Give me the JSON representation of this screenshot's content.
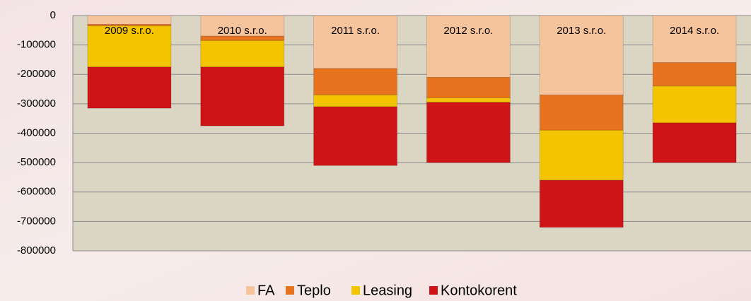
{
  "chart_data": {
    "type": "stacked-bar",
    "categories": [
      "2009  s.r.o.",
      "2010 s.r.o.",
      "2011 s.r.o.",
      "2012 s.r.o.",
      "2013 s.r.o.",
      "2014 s.r.o."
    ],
    "series": [
      {
        "name": "FA",
        "color": "#f6c49c",
        "values": [
          -30000,
          -70000,
          -180000,
          -210000,
          -270000,
          -160000
        ]
      },
      {
        "name": "Teplo",
        "color": "#e7731f",
        "values": [
          -5000,
          -15000,
          -90000,
          -70000,
          -120000,
          -80000
        ]
      },
      {
        "name": "Leasing",
        "color": "#f4c400",
        "values": [
          -140000,
          -90000,
          -40000,
          -15000,
          -170000,
          -125000
        ]
      },
      {
        "name": "Kontokorent",
        "color": "#cf1418",
        "values": [
          -140000,
          -200000,
          -200000,
          -205000,
          -160000,
          -135000
        ]
      }
    ],
    "ylim": [
      -800000,
      0
    ],
    "yticks": [
      0,
      -100000,
      -200000,
      -300000,
      -400000,
      -500000,
      -600000,
      -700000,
      -800000
    ],
    "grid": true
  }
}
